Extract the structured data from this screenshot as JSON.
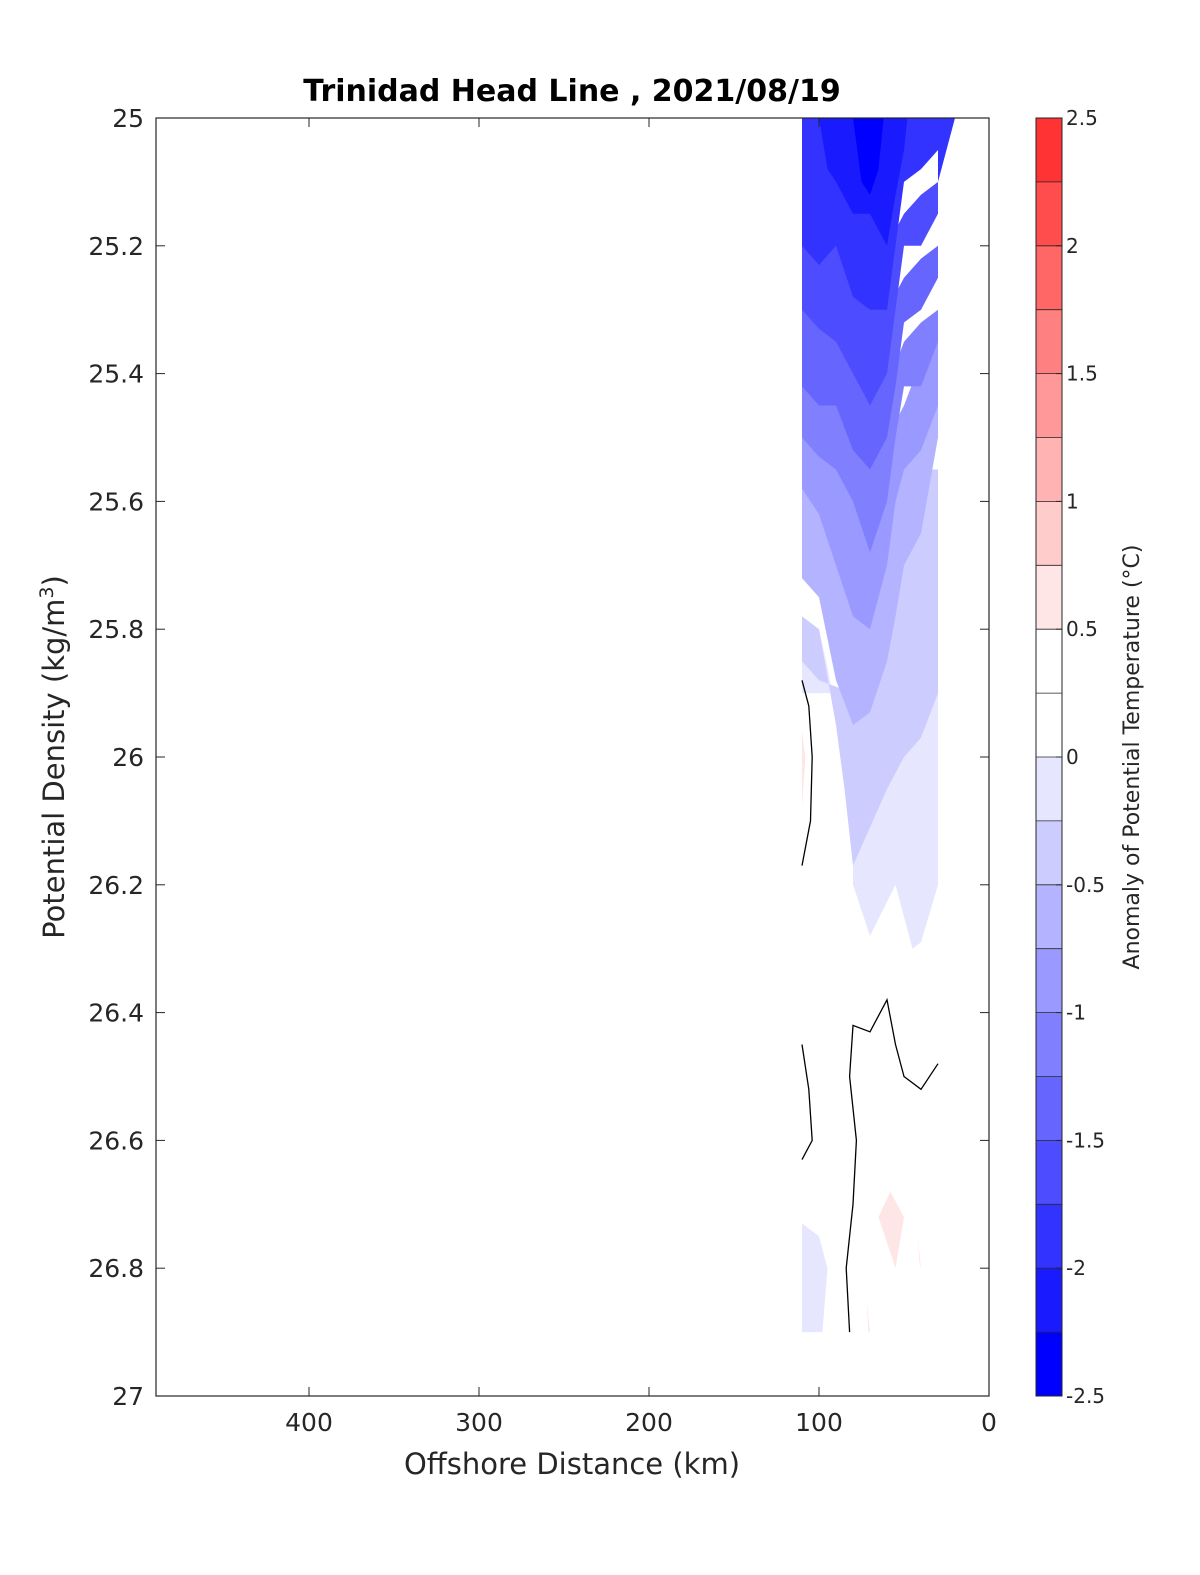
{
  "chart_data": {
    "type": "heatmap",
    "title": "Trinidad Head Line , 2021/08/19",
    "xlabel": "Offshore Distance (km)",
    "ylabel_main": "Potential Density (kg/m",
    "ylabel_sup": "3",
    "ylabel_end": ")",
    "colorbar_label": "Anomaly of Potential Temperature (°C)",
    "xlim": [
      490,
      0
    ],
    "x_reversed": true,
    "ylim": [
      25,
      27
    ],
    "y_reversed": true,
    "x_ticks": [
      {
        "value": 400,
        "label": "400"
      },
      {
        "value": 300,
        "label": "300"
      },
      {
        "value": 200,
        "label": "200"
      },
      {
        "value": 100,
        "label": "100"
      },
      {
        "value": 0,
        "label": "0"
      }
    ],
    "y_ticks": [
      {
        "value": 25,
        "label": "25"
      },
      {
        "value": 25.2,
        "label": "25.2"
      },
      {
        "value": 25.4,
        "label": "25.4"
      },
      {
        "value": 25.6,
        "label": "25.6"
      },
      {
        "value": 25.8,
        "label": "25.8"
      },
      {
        "value": 26,
        "label": "26"
      },
      {
        "value": 26.2,
        "label": "26.2"
      },
      {
        "value": 26.4,
        "label": "26.4"
      },
      {
        "value": 26.6,
        "label": "26.6"
      },
      {
        "value": 26.8,
        "label": "26.8"
      },
      {
        "value": 27,
        "label": "27"
      }
    ],
    "colorbar": {
      "range": [
        -2.5,
        2.5
      ],
      "tick_values": [
        -2.5,
        -2,
        -1.5,
        -1,
        -0.5,
        0,
        0.5,
        1,
        1.5,
        2,
        2.5
      ],
      "tick_labels": [
        "-2.5",
        "-2",
        "-1.5",
        "-1",
        "-0.5",
        "0",
        "0.5",
        "1",
        "1.5",
        "2",
        "2.5"
      ],
      "levels": [
        {
          "from": -2.5,
          "to": -2.25,
          "color": "#0000ff"
        },
        {
          "from": -2.25,
          "to": -2.0,
          "color": "#1a1aff"
        },
        {
          "from": -2.0,
          "to": -1.75,
          "color": "#3333ff"
        },
        {
          "from": -1.75,
          "to": -1.5,
          "color": "#4d4dff"
        },
        {
          "from": -1.5,
          "to": -1.25,
          "color": "#6666ff"
        },
        {
          "from": -1.25,
          "to": -1.0,
          "color": "#8080ff"
        },
        {
          "from": -1.0,
          "to": -0.75,
          "color": "#9999ff"
        },
        {
          "from": -0.75,
          "to": -0.5,
          "color": "#b3b3ff"
        },
        {
          "from": -0.5,
          "to": -0.25,
          "color": "#ccccff"
        },
        {
          "from": -0.25,
          "to": 0.0,
          "color": "#e6e6ff"
        },
        {
          "from": 0.0,
          "to": 0.25,
          "color": "#ffffff"
        },
        {
          "from": 0.25,
          "to": 0.5,
          "color": "#ffffff"
        },
        {
          "from": 0.5,
          "to": 0.75,
          "color": "#ffe6e6"
        },
        {
          "from": 0.75,
          "to": 1.0,
          "color": "#ffcccc"
        },
        {
          "from": 1.0,
          "to": 1.25,
          "color": "#ffb3b3"
        },
        {
          "from": 1.25,
          "to": 1.5,
          "color": "#ff9999"
        },
        {
          "from": 1.5,
          "to": 1.75,
          "color": "#ff8080"
        },
        {
          "from": 1.75,
          "to": 2.0,
          "color": "#ff6666"
        },
        {
          "from": 2.0,
          "to": 2.25,
          "color": "#ff4d4d"
        },
        {
          "from": 2.25,
          "to": 2.5,
          "color": "#ff3333"
        }
      ]
    },
    "filled_regions": [
      {
        "level": -0.125,
        "color": "#e6e6ff",
        "points": [
          [
            110,
            25.78
          ],
          [
            100,
            25.8
          ],
          [
            95,
            25.86
          ],
          [
            85,
            26.0
          ],
          [
            80,
            26.15
          ],
          [
            80,
            26.2
          ],
          [
            70,
            26.28
          ],
          [
            55,
            26.2
          ],
          [
            45,
            26.3
          ],
          [
            40,
            26.29
          ],
          [
            30,
            26.2
          ],
          [
            30,
            25.7
          ],
          [
            35,
            25.6
          ],
          [
            45,
            25.6
          ],
          [
            55,
            25.7
          ],
          [
            60,
            25.8
          ],
          [
            70,
            25.9
          ],
          [
            100,
            25.9
          ],
          [
            110,
            25.9
          ]
        ]
      },
      {
        "level": -0.375,
        "color": "#ccccff",
        "points": [
          [
            110,
            25.7
          ],
          [
            110,
            25.78
          ],
          [
            100,
            25.8
          ],
          [
            90,
            25.95
          ],
          [
            85,
            26.05
          ],
          [
            80,
            26.17
          ],
          [
            60,
            26.05
          ],
          [
            50,
            26.0
          ],
          [
            40,
            25.97
          ],
          [
            30,
            25.9
          ],
          [
            30,
            25.55
          ],
          [
            40,
            25.55
          ],
          [
            50,
            25.6
          ],
          [
            60,
            25.7
          ],
          [
            70,
            25.8
          ],
          [
            80,
            25.9
          ],
          [
            100,
            25.88
          ],
          [
            110,
            25.85
          ]
        ]
      },
      {
        "level": -0.625,
        "color": "#b3b3ff",
        "points": [
          [
            110,
            25.58
          ],
          [
            110,
            25.72
          ],
          [
            100,
            25.75
          ],
          [
            90,
            25.88
          ],
          [
            80,
            25.95
          ],
          [
            70,
            25.93
          ],
          [
            60,
            25.85
          ],
          [
            55,
            25.78
          ],
          [
            50,
            25.7
          ],
          [
            40,
            25.65
          ],
          [
            30,
            25.5
          ],
          [
            30,
            25.42
          ],
          [
            40,
            25.45
          ],
          [
            50,
            25.5
          ],
          [
            60,
            25.6
          ],
          [
            70,
            25.65
          ],
          [
            90,
            25.6
          ],
          [
            110,
            25.55
          ]
        ]
      },
      {
        "level": -0.875,
        "color": "#9999ff",
        "points": [
          [
            110,
            25.5
          ],
          [
            110,
            25.58
          ],
          [
            100,
            25.62
          ],
          [
            90,
            25.7
          ],
          [
            80,
            25.78
          ],
          [
            70,
            25.8
          ],
          [
            60,
            25.7
          ],
          [
            55,
            25.6
          ],
          [
            50,
            25.55
          ],
          [
            40,
            25.52
          ],
          [
            30,
            25.45
          ],
          [
            30,
            25.35
          ],
          [
            40,
            25.38
          ],
          [
            50,
            25.45
          ],
          [
            60,
            25.5
          ],
          [
            70,
            25.52
          ],
          [
            90,
            25.5
          ],
          [
            110,
            25.48
          ]
        ]
      },
      {
        "level": -1.125,
        "color": "#8080ff",
        "points": [
          [
            110,
            25.4
          ],
          [
            110,
            25.5
          ],
          [
            100,
            25.53
          ],
          [
            90,
            25.55
          ],
          [
            80,
            25.6
          ],
          [
            70,
            25.68
          ],
          [
            60,
            25.6
          ],
          [
            55,
            25.5
          ],
          [
            50,
            25.42
          ],
          [
            40,
            25.42
          ],
          [
            30,
            25.35
          ],
          [
            30,
            25.3
          ],
          [
            40,
            25.32
          ],
          [
            50,
            25.35
          ],
          [
            60,
            25.42
          ],
          [
            70,
            25.45
          ],
          [
            90,
            25.4
          ],
          [
            110,
            25.38
          ]
        ]
      },
      {
        "level": -1.375,
        "color": "#6666ff",
        "points": [
          [
            110,
            25.3
          ],
          [
            110,
            25.42
          ],
          [
            100,
            25.45
          ],
          [
            90,
            25.45
          ],
          [
            80,
            25.52
          ],
          [
            70,
            25.55
          ],
          [
            60,
            25.5
          ],
          [
            55,
            25.42
          ],
          [
            50,
            25.32
          ],
          [
            40,
            25.3
          ],
          [
            30,
            25.25
          ],
          [
            30,
            25.2
          ],
          [
            40,
            25.22
          ],
          [
            50,
            25.25
          ],
          [
            60,
            25.3
          ],
          [
            70,
            25.35
          ],
          [
            90,
            25.3
          ],
          [
            110,
            25.28
          ]
        ]
      },
      {
        "level": -1.625,
        "color": "#4d4dff",
        "points": [
          [
            110,
            25.2
          ],
          [
            110,
            25.3
          ],
          [
            100,
            25.33
          ],
          [
            90,
            25.35
          ],
          [
            80,
            25.4
          ],
          [
            70,
            25.45
          ],
          [
            60,
            25.4
          ],
          [
            55,
            25.3
          ],
          [
            50,
            25.2
          ],
          [
            40,
            25.2
          ],
          [
            30,
            25.15
          ],
          [
            30,
            25.1
          ],
          [
            40,
            25.12
          ],
          [
            50,
            25.15
          ],
          [
            60,
            25.2
          ],
          [
            70,
            25.25
          ],
          [
            90,
            25.2
          ],
          [
            110,
            25.18
          ]
        ]
      },
      {
        "level": -1.875,
        "color": "#3333ff",
        "points": [
          [
            110,
            25.1
          ],
          [
            110,
            25.2
          ],
          [
            100,
            25.23
          ],
          [
            90,
            25.2
          ],
          [
            80,
            25.28
          ],
          [
            70,
            25.3
          ],
          [
            60,
            25.3
          ],
          [
            55,
            25.2
          ],
          [
            50,
            25.1
          ],
          [
            40,
            25.08
          ],
          [
            30,
            25.05
          ],
          [
            25,
            25.0
          ],
          [
            100,
            25.0
          ],
          [
            110,
            25.0
          ]
        ]
      },
      {
        "level": -2.125,
        "color": "#1a1aff",
        "points": [
          [
            100,
            25.0
          ],
          [
            95,
            25.08
          ],
          [
            90,
            25.1
          ],
          [
            80,
            25.15
          ],
          [
            70,
            25.15
          ],
          [
            60,
            25.2
          ],
          [
            55,
            25.12
          ],
          [
            50,
            25.05
          ],
          [
            48,
            25.0
          ]
        ]
      },
      {
        "level": -2.375,
        "color": "#0000ff",
        "points": [
          [
            80,
            25.0
          ],
          [
            75,
            25.1
          ],
          [
            70,
            25.12
          ],
          [
            65,
            25.08
          ],
          [
            62,
            25.0
          ]
        ]
      },
      {
        "level": -1.875,
        "color": "#3333ff",
        "points": [
          [
            30,
            25.1
          ],
          [
            20,
            25.0
          ],
          [
            30,
            25.0
          ]
        ]
      },
      {
        "level": -0.125,
        "color": "#e6e6ff",
        "points": [
          [
            110,
            26.73
          ],
          [
            100,
            26.75
          ],
          [
            95,
            26.8
          ],
          [
            98,
            26.9
          ],
          [
            110,
            26.9
          ]
        ]
      },
      {
        "level": 0.625,
        "color": "#ffe6e6",
        "points": [
          [
            110,
            25.96
          ],
          [
            108,
            26.0
          ],
          [
            110,
            26.08
          ]
        ]
      },
      {
        "level": 0.625,
        "color": "#ffe6e6",
        "points": [
          [
            58,
            26.68
          ],
          [
            50,
            26.72
          ],
          [
            55,
            26.8
          ],
          [
            60,
            26.76
          ],
          [
            65,
            26.72
          ]
        ]
      },
      {
        "level": 0.625,
        "color": "#ffe6e6",
        "points": [
          [
            42,
            26.75
          ],
          [
            40,
            26.8
          ],
          [
            41,
            26.79
          ]
        ]
      },
      {
        "level": 0.625,
        "color": "#ffe6e6",
        "points": [
          [
            72,
            26.85
          ],
          [
            70,
            26.9
          ],
          [
            71,
            26.9
          ]
        ]
      }
    ],
    "zero_contours": [
      [
        [
          110,
          25.88
        ],
        [
          106,
          25.92
        ],
        [
          104,
          26.0
        ],
        [
          105,
          26.1
        ],
        [
          110,
          26.17
        ]
      ],
      [
        [
          110,
          26.45
        ],
        [
          106,
          26.52
        ],
        [
          104,
          26.6
        ],
        [
          110,
          26.63
        ]
      ],
      [
        [
          30,
          26.48
        ],
        [
          40,
          26.52
        ],
        [
          50,
          26.5
        ],
        [
          55,
          26.45
        ],
        [
          60,
          26.38
        ],
        [
          70,
          26.43
        ],
        [
          80,
          26.42
        ],
        [
          82,
          26.5
        ],
        [
          78,
          26.6
        ],
        [
          80,
          26.7
        ],
        [
          84,
          26.8
        ],
        [
          82,
          26.9
        ]
      ]
    ]
  }
}
